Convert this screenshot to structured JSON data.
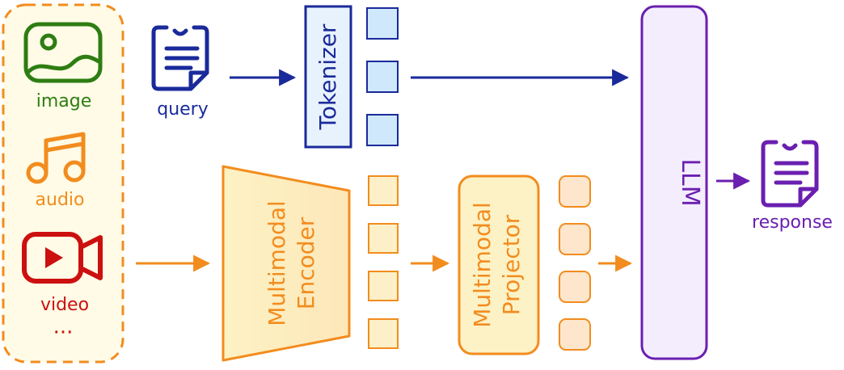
{
  "inputs": {
    "image_label": "image",
    "audio_label": "audio",
    "video_label": "video",
    "more_label": "···"
  },
  "query_label": "query",
  "tokenizer_label": "Tokenizer",
  "encoder_label": [
    "Multimodal",
    "Encoder"
  ],
  "projector_label": [
    "Multimodal",
    "Projector"
  ],
  "llm_label": "LLM",
  "response_label": "response",
  "colors": {
    "image": "#2e7d12",
    "audio": "#f28c1e",
    "video": "#cc1010",
    "blue": "#1a2a9a",
    "token_fill": "#cfe8fb",
    "orange": "#f28c1e",
    "orange_fill": "#fdf0c8",
    "purple": "#6a1fb0",
    "response": "#6a1fb0"
  }
}
